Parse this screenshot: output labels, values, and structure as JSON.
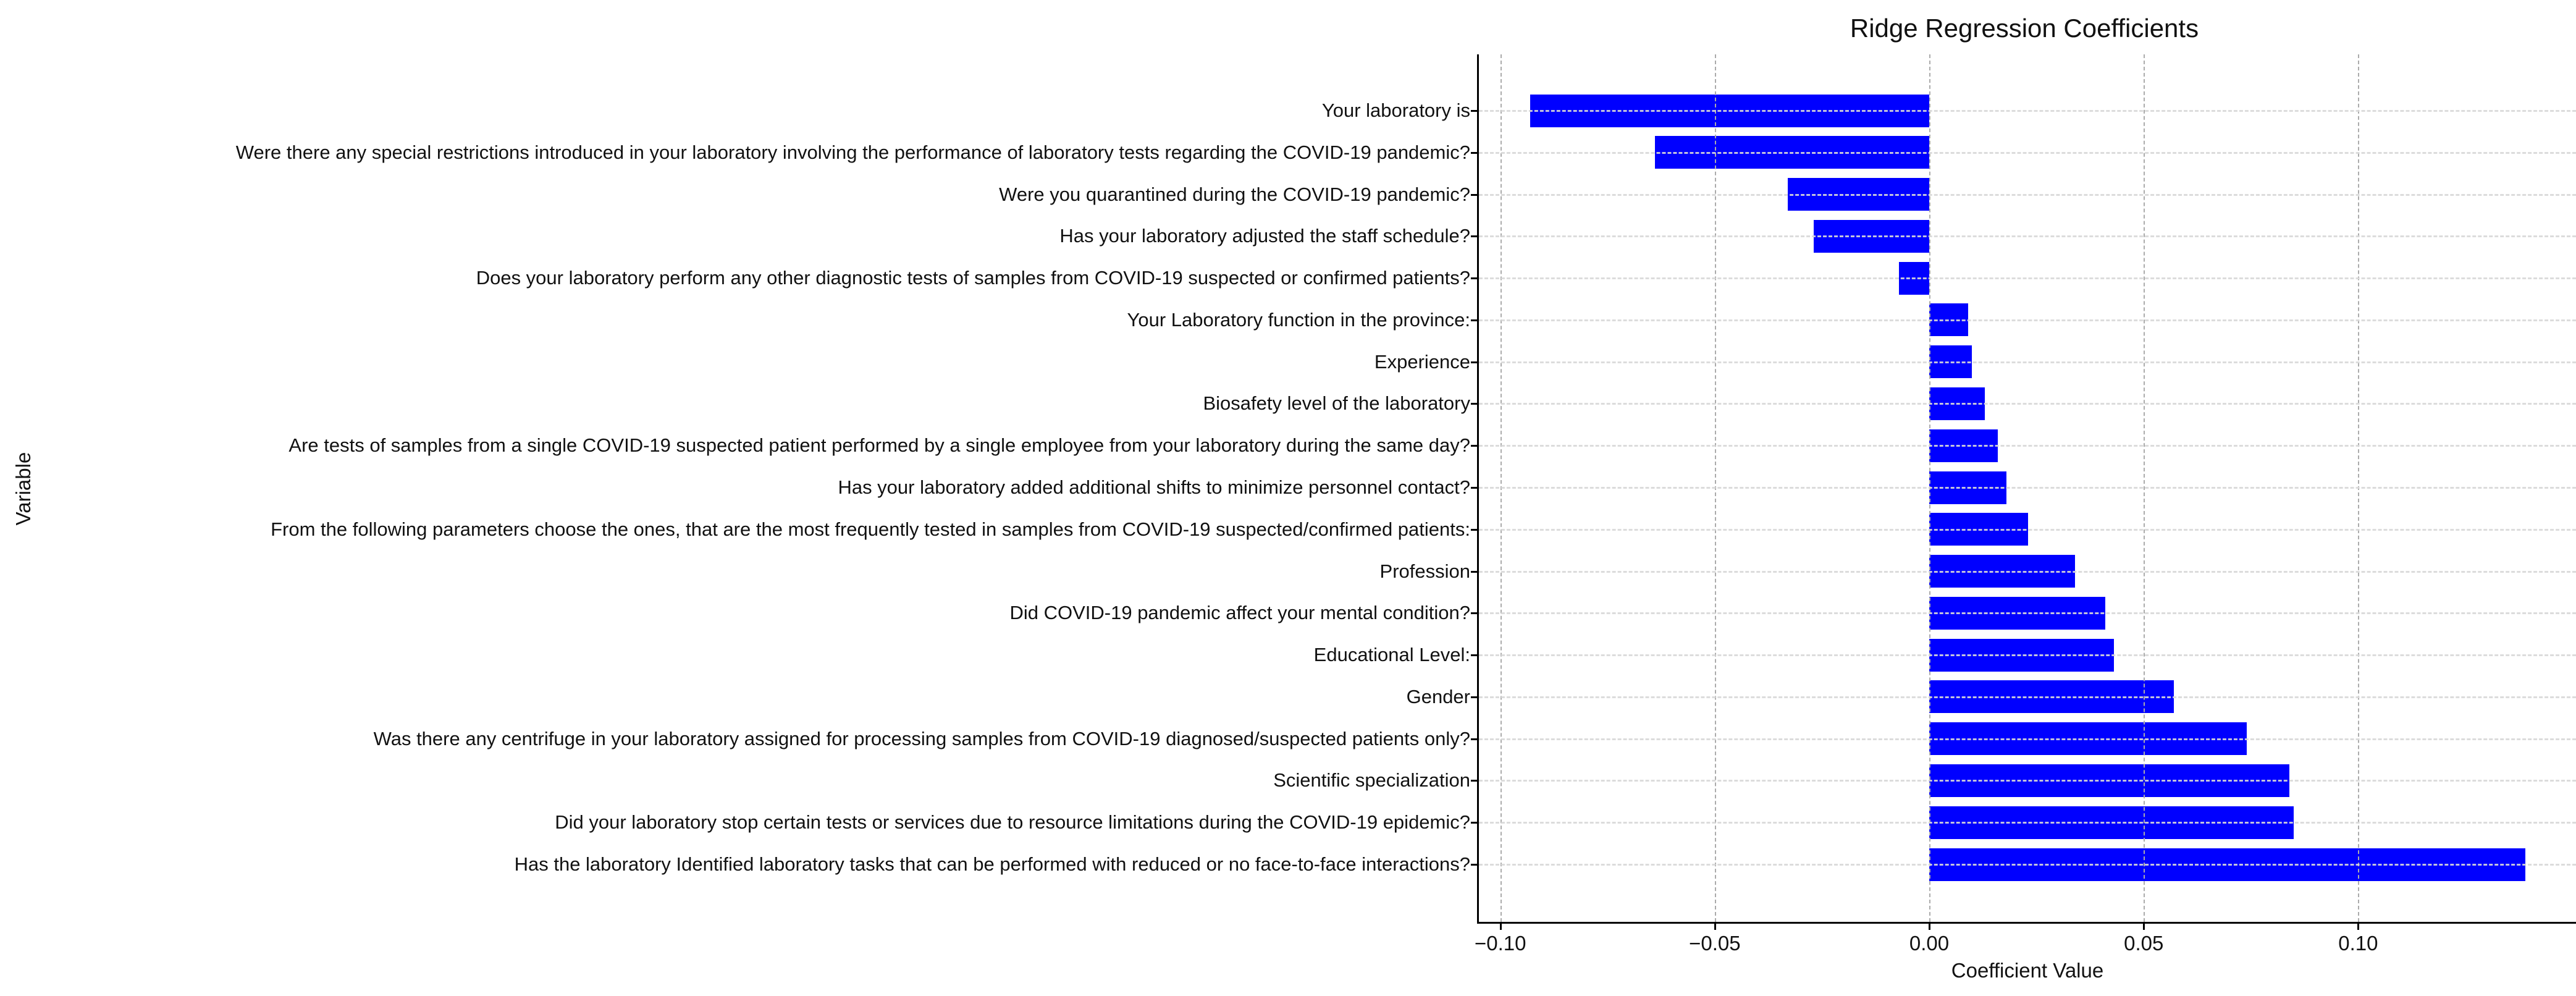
{
  "chart_data": {
    "type": "bar",
    "orientation": "horizontal",
    "title": "Ridge Regression Coefficients",
    "xlabel": "Coefficient Value",
    "ylabel": "Variable",
    "categories": [
      "Your laboratory is",
      "Were there any special restrictions introduced in your laboratory involving the performance of laboratory tests regarding the COVID-19 pandemic?",
      "Were you quarantined during the COVID-19 pandemic?",
      "Has your laboratory adjusted the staff schedule?",
      "Does your laboratory perform any other diagnostic tests of samples from COVID-19 suspected or confirmed patients?",
      "Your Laboratory function in the province:",
      "Experience",
      "Biosafety level of the laboratory",
      "Are tests of samples from a single COVID-19 suspected patient performed by a single employee from your laboratory during the same day?",
      "Has your laboratory added additional shifts to minimize personnel contact?",
      "From the following parameters choose the ones, that are the most frequently tested in samples from COVID-19 suspected/confirmed patients:",
      "Profession",
      "Did COVID-19 pandemic affect your mental condition?",
      "Educational Level:",
      "Gender",
      "Was there any centrifuge in your laboratory assigned for processing samples from COVID-19 diagnosed/suspected patients only?",
      "Scientific specialization",
      "Did your laboratory stop certain tests or services due to resource limitations during the COVID-19 epidemic?",
      "Has the laboratory Identified laboratory tasks that can be performed with reduced or no face-to-face interactions?"
    ],
    "values": [
      -0.093,
      -0.064,
      -0.033,
      -0.027,
      -0.007,
      0.009,
      0.01,
      0.013,
      0.016,
      0.018,
      0.023,
      0.034,
      0.041,
      0.043,
      0.057,
      0.074,
      0.084,
      0.085,
      0.139
    ],
    "xlim": [
      -0.105,
      0.1505
    ],
    "xticks": [
      -0.1,
      -0.05,
      0.0,
      0.05,
      0.1
    ],
    "xtick_labels": [
      "−0.10",
      "−0.05",
      "0.00",
      "0.05",
      "0.10"
    ],
    "bar_color": "#0000ff",
    "grid": true,
    "legend": false
  }
}
